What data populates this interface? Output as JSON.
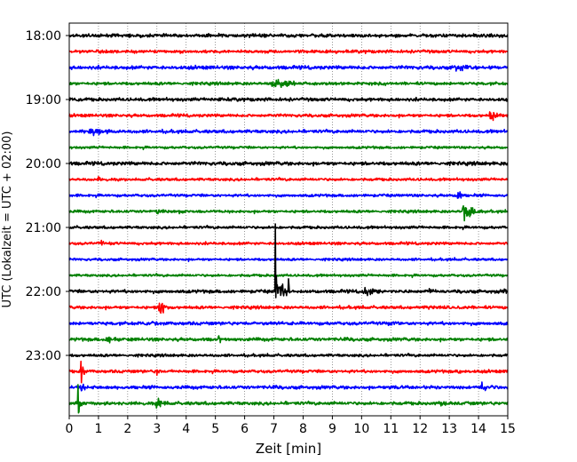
{
  "chart_data": {
    "type": "line",
    "title": "",
    "xlabel": "Zeit  [min]",
    "ylabel": "UTC (Lokalzeit = UTC + 02:00)",
    "xlim": [
      0,
      15
    ],
    "x_ticks": [
      0,
      1,
      2,
      3,
      4,
      5,
      6,
      7,
      8,
      9,
      10,
      11,
      12,
      13,
      14,
      15
    ],
    "y_ticks": [
      "18:00",
      "19:00",
      "20:00",
      "21:00",
      "22:00",
      "23:00"
    ],
    "grid": "vertical",
    "colors": [
      "#000000",
      "#ff0000",
      "#0000ff",
      "#008000"
    ],
    "trace_interval_min": 15,
    "traces": [
      {
        "start": "18:00",
        "color": "#000000",
        "noise": 1.2,
        "events": [
          {
            "t": 8.9,
            "amp": 4,
            "dur": 0.1
          }
        ]
      },
      {
        "start": "18:15",
        "color": "#ff0000",
        "noise": 1.1,
        "events": []
      },
      {
        "start": "18:30",
        "color": "#0000ff",
        "noise": 1.3,
        "events": [
          {
            "t": 13.2,
            "amp": 3,
            "dur": 1.0
          }
        ]
      },
      {
        "start": "18:45",
        "color": "#008000",
        "noise": 1.1,
        "events": [
          {
            "t": 7.0,
            "amp": 5,
            "dur": 1.4
          }
        ]
      },
      {
        "start": "19:00",
        "color": "#000000",
        "noise": 1.2,
        "events": [
          {
            "t": 5.0,
            "amp": 3,
            "dur": 0.6
          }
        ]
      },
      {
        "start": "19:15",
        "color": "#ff0000",
        "noise": 1.1,
        "events": [
          {
            "t": 14.4,
            "amp": 5,
            "dur": 0.6
          }
        ]
      },
      {
        "start": "19:30",
        "color": "#0000ff",
        "noise": 1.2,
        "events": [
          {
            "t": 0.8,
            "amp": 3,
            "dur": 1.0
          }
        ]
      },
      {
        "start": "19:45",
        "color": "#008000",
        "noise": 0.9,
        "events": []
      },
      {
        "start": "20:00",
        "color": "#000000",
        "noise": 1.3,
        "events": []
      },
      {
        "start": "20:15",
        "color": "#ff0000",
        "noise": 1.0,
        "events": [
          {
            "t": 1.0,
            "amp": 3,
            "dur": 0.1
          }
        ]
      },
      {
        "start": "20:30",
        "color": "#0000ff",
        "noise": 1.0,
        "events": [
          {
            "t": 13.3,
            "amp": 18,
            "dur": 0.15
          }
        ]
      },
      {
        "start": "20:45",
        "color": "#008000",
        "noise": 1.0,
        "events": [
          {
            "t": 3.0,
            "amp": 4,
            "dur": 0.3
          },
          {
            "t": 13.5,
            "amp": 12,
            "dur": 0.6
          }
        ]
      },
      {
        "start": "21:00",
        "color": "#000000",
        "noise": 1.0,
        "events": []
      },
      {
        "start": "21:15",
        "color": "#ff0000",
        "noise": 1.0,
        "events": [
          {
            "t": 1.1,
            "amp": 3,
            "dur": 0.2
          }
        ]
      },
      {
        "start": "21:30",
        "color": "#0000ff",
        "noise": 0.9,
        "events": []
      },
      {
        "start": "21:45",
        "color": "#008000",
        "noise": 0.9,
        "events": []
      },
      {
        "start": "22:00",
        "color": "#000000",
        "noise": 1.2,
        "events": [
          {
            "t": 7.05,
            "amp": 70,
            "dur": 0.1
          },
          {
            "t": 7.2,
            "amp": 14,
            "dur": 0.4
          },
          {
            "t": 7.5,
            "amp": 16,
            "dur": 0.05
          },
          {
            "t": 10.1,
            "amp": 7,
            "dur": 0.5
          },
          {
            "t": 12.3,
            "amp": 4,
            "dur": 0.3
          },
          {
            "t": 14.9,
            "amp": 4,
            "dur": 0.2
          }
        ]
      },
      {
        "start": "22:15",
        "color": "#ff0000",
        "noise": 1.1,
        "events": [
          {
            "t": 3.1,
            "amp": 12,
            "dur": 0.35
          },
          {
            "t": 12.3,
            "amp": 3,
            "dur": 0.3
          }
        ]
      },
      {
        "start": "22:30",
        "color": "#0000ff",
        "noise": 1.2,
        "events": [
          {
            "t": 2.8,
            "amp": 3,
            "dur": 0.6
          },
          {
            "t": 11.0,
            "amp": 3,
            "dur": 0.3
          }
        ]
      },
      {
        "start": "22:45",
        "color": "#008000",
        "noise": 1.2,
        "events": [
          {
            "t": 1.3,
            "amp": 4,
            "dur": 0.6
          },
          {
            "t": 5.1,
            "amp": 4,
            "dur": 0.2
          }
        ]
      },
      {
        "start": "23:00",
        "color": "#000000",
        "noise": 1.0,
        "events": []
      },
      {
        "start": "23:15",
        "color": "#ff0000",
        "noise": 1.1,
        "events": [
          {
            "t": 0.4,
            "amp": 14,
            "dur": 0.2
          },
          {
            "t": 3.0,
            "amp": 3,
            "dur": 0.3
          },
          {
            "t": 13.3,
            "amp": 4,
            "dur": 0.3
          }
        ]
      },
      {
        "start": "23:30",
        "color": "#0000ff",
        "noise": 1.2,
        "events": [
          {
            "t": 0.4,
            "amp": 5,
            "dur": 0.2
          },
          {
            "t": 11.0,
            "amp": 5,
            "dur": 0.2
          },
          {
            "t": 14.1,
            "amp": 6,
            "dur": 0.4
          }
        ]
      },
      {
        "start": "23:45",
        "color": "#008000",
        "noise": 1.2,
        "events": [
          {
            "t": 0.3,
            "amp": 18,
            "dur": 0.25
          },
          {
            "t": 3.0,
            "amp": 10,
            "dur": 0.3
          },
          {
            "t": 12.7,
            "amp": 4,
            "dur": 0.2
          }
        ]
      }
    ]
  }
}
